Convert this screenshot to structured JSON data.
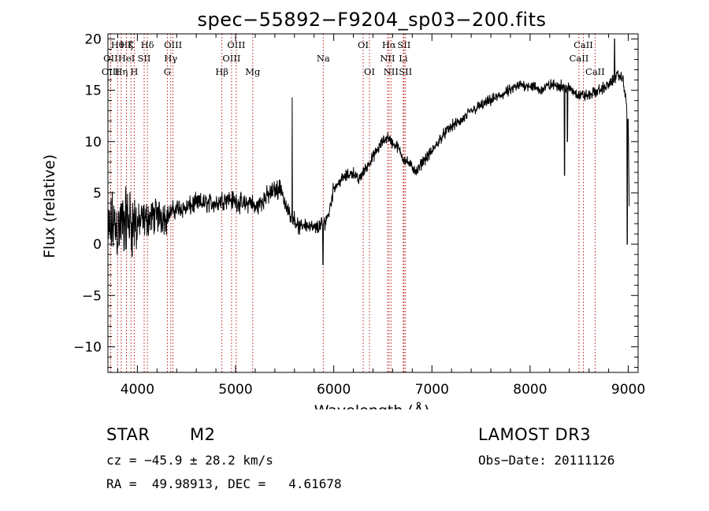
{
  "chart_data": {
    "type": "line",
    "title": "spec−55892−F9204_sp03−200.fits",
    "xlabel": "Wavelength (Å)",
    "ylabel": "Flux (relative)",
    "xlim": [
      3700,
      9100
    ],
    "ylim": [
      -12.5,
      20.5
    ],
    "xticks": [
      4000,
      5000,
      6000,
      7000,
      8000,
      9000
    ],
    "yticks": [
      -10,
      -5,
      0,
      5,
      10,
      15,
      20
    ],
    "ytick_labels": [
      "−10",
      "−5",
      "0",
      "5",
      "10",
      "15",
      "20"
    ],
    "grid": false,
    "series": [
      {
        "name": "spectrum",
        "anchors": [
          [
            3700,
            0.5
          ],
          [
            3750,
            2.0
          ],
          [
            3800,
            1.5
          ],
          [
            3850,
            2.0
          ],
          [
            3900,
            2.5
          ],
          [
            3950,
            2.0
          ],
          [
            4000,
            2.0
          ],
          [
            4100,
            2.5
          ],
          [
            4200,
            2.8
          ],
          [
            4300,
            2.8
          ],
          [
            4400,
            3.5
          ],
          [
            4500,
            3.5
          ],
          [
            4600,
            4.0
          ],
          [
            4700,
            4.0
          ],
          [
            4800,
            4.0
          ],
          [
            4900,
            4.5
          ],
          [
            5000,
            4.2
          ],
          [
            5100,
            3.8
          ],
          [
            5150,
            4.2
          ],
          [
            5200,
            3.5
          ],
          [
            5300,
            4.5
          ],
          [
            5400,
            5.3
          ],
          [
            5470,
            5.5
          ],
          [
            5500,
            3.8
          ],
          [
            5550,
            3.0
          ],
          [
            5600,
            2.5
          ],
          [
            5650,
            1.5
          ],
          [
            5700,
            2.0
          ],
          [
            5800,
            1.5
          ],
          [
            5900,
            2.0
          ],
          [
            5950,
            3.0
          ],
          [
            6000,
            5.5
          ],
          [
            6100,
            6.5
          ],
          [
            6200,
            7.0
          ],
          [
            6250,
            6.2
          ],
          [
            6300,
            7.0
          ],
          [
            6400,
            8.5
          ],
          [
            6500,
            10.0
          ],
          [
            6550,
            10.5
          ],
          [
            6600,
            9.8
          ],
          [
            6650,
            9.5
          ],
          [
            6700,
            8.5
          ],
          [
            6800,
            7.5
          ],
          [
            6850,
            7.0
          ],
          [
            6900,
            8.0
          ],
          [
            7000,
            9.0
          ],
          [
            7100,
            10.5
          ],
          [
            7200,
            11.5
          ],
          [
            7300,
            12.0
          ],
          [
            7400,
            13.0
          ],
          [
            7500,
            13.5
          ],
          [
            7600,
            14.0
          ],
          [
            7700,
            14.5
          ],
          [
            7800,
            15.0
          ],
          [
            7900,
            15.5
          ],
          [
            8000,
            15.5
          ],
          [
            8100,
            15.0
          ],
          [
            8200,
            15.5
          ],
          [
            8300,
            15.5
          ],
          [
            8400,
            15.2
          ],
          [
            8500,
            14.5
          ],
          [
            8600,
            14.5
          ],
          [
            8700,
            15.0
          ],
          [
            8800,
            15.5
          ],
          [
            8900,
            16.5
          ],
          [
            8950,
            16.0
          ],
          [
            9000,
            12.0
          ],
          [
            9010,
            2.5
          ]
        ],
        "features": [
          {
            "x": 5577,
            "y": 14.3
          },
          {
            "x": 5890,
            "y": -2.0
          },
          {
            "x": 8350,
            "y": 6.7
          },
          {
            "x": 8380,
            "y": 10.0
          },
          {
            "x": 8860,
            "y": 20.0
          },
          {
            "x": 8990,
            "y": 0.0
          }
        ]
      }
    ],
    "line_markers": [
      {
        "label": "Hθ",
        "x": 3798,
        "row": 1
      },
      {
        "label": "OII",
        "x": 3727,
        "row": 2
      },
      {
        "label": "OIII",
        "x": 3727,
        "row": 3
      },
      {
        "label": "Hζ",
        "x": 3889,
        "row": 1
      },
      {
        "label": "K",
        "x": 3934,
        "row": 1
      },
      {
        "label": "HeI",
        "x": 3889,
        "row": 2
      },
      {
        "label": "SII",
        "x": 4069,
        "row": 2
      },
      {
        "label": "Hη",
        "x": 3835,
        "row": 3
      },
      {
        "label": "H",
        "x": 3968,
        "row": 3
      },
      {
        "label": "Hδ",
        "x": 4102,
        "row": 1
      },
      {
        "label": "OIII",
        "x": 4363,
        "row": 1
      },
      {
        "label": "Hγ",
        "x": 4340,
        "row": 2
      },
      {
        "label": "G",
        "x": 4305,
        "row": 3
      },
      {
        "label": "OIII",
        "x": 5007,
        "row": 1
      },
      {
        "label": "OIII",
        "x": 4959,
        "row": 2
      },
      {
        "label": "Hβ",
        "x": 4861,
        "row": 3
      },
      {
        "label": "Mg",
        "x": 5175,
        "row": 3
      },
      {
        "label": "Na",
        "x": 5893,
        "row": 2
      },
      {
        "label": "OI",
        "x": 6300,
        "row": 1
      },
      {
        "label": "OI",
        "x": 6364,
        "row": 3
      },
      {
        "label": "Hα",
        "x": 6563,
        "row": 1
      },
      {
        "label": "SII",
        "x": 6716,
        "row": 1
      },
      {
        "label": "NII",
        "x": 6548,
        "row": 2
      },
      {
        "label": "Li",
        "x": 6708,
        "row": 2
      },
      {
        "label": "NII",
        "x": 6583,
        "row": 3
      },
      {
        "label": "SII",
        "x": 6731,
        "row": 3
      },
      {
        "label": "CaII",
        "x": 8542,
        "row": 1
      },
      {
        "label": "CaII",
        "x": 8498,
        "row": 2
      },
      {
        "label": "CaII",
        "x": 8662,
        "row": 3
      }
    ]
  },
  "info": {
    "object_class": "STAR",
    "subclass": "M2",
    "survey": "LAMOST DR3",
    "cz": "cz = −45.9 ± 28.2 km/s",
    "obs_date": "Obs−Date: 20111126",
    "coords": "RA =  49.98913, DEC =   4.61678"
  }
}
